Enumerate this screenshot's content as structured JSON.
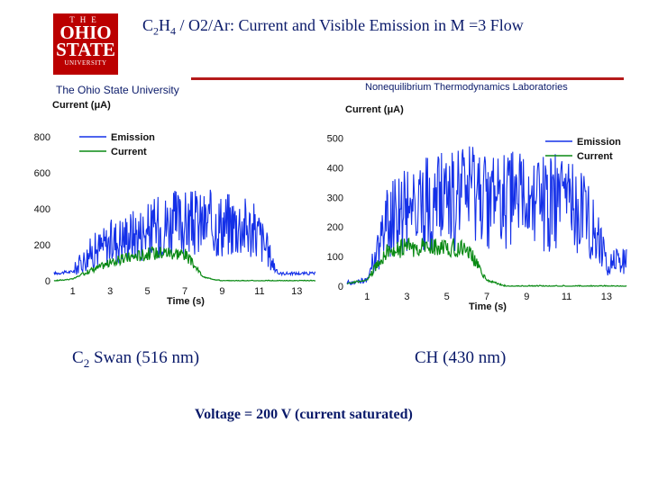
{
  "logo": {
    "the": "THE",
    "ohio": "OHIO",
    "state": "STATE",
    "university": "UNIVERSITY"
  },
  "title": {
    "prefix": "C",
    "sub1": "2",
    "mid": "H",
    "sub2": "4",
    "rest": " / O2/Ar: Current and Visible Emission in M =3 Flow"
  },
  "affiliation_left": "The Ohio State University",
  "affiliation_right": "Nonequilibrium Thermodynamics Laboratories",
  "captions": {
    "left_prefix": "C",
    "left_sub": "2",
    "left_rest": " Swan (516 nm)",
    "right": "CH (430 nm)",
    "voltage": "Voltage = 200 V (current saturated)"
  },
  "colors": {
    "emission": "#1430e8",
    "current": "#0a8a14",
    "accent": "#b51a1a",
    "text": "#0a1a6a"
  },
  "chart_data": [
    {
      "type": "line",
      "ylabel": "Current (μA)",
      "xlabel": "Time (s)",
      "xlim": [
        0,
        14
      ],
      "ylim": [
        0,
        900
      ],
      "x_ticks": [
        1,
        3,
        5,
        7,
        9,
        11,
        13
      ],
      "y_ticks": [
        0,
        200,
        400,
        600,
        800
      ],
      "legend": "top-left",
      "series": [
        {
          "name": "Emission",
          "x": [
            0,
            1,
            2,
            3,
            4,
            5,
            6,
            7,
            8,
            9,
            10,
            11,
            12,
            13
          ],
          "values": [
            40,
            50,
            150,
            200,
            240,
            260,
            300,
            300,
            300,
            300,
            300,
            240,
            40,
            40
          ]
        },
        {
          "name": "Current",
          "x": [
            0,
            1,
            2,
            3,
            4,
            5,
            6,
            7,
            8,
            9,
            10,
            11,
            12,
            13
          ],
          "values": [
            0,
            10,
            60,
            100,
            130,
            150,
            160,
            150,
            20,
            0,
            0,
            0,
            0,
            0
          ]
        }
      ]
    },
    {
      "type": "line",
      "ylabel": "Current (μA)",
      "xlabel": "Time (s)",
      "xlim": [
        0,
        14
      ],
      "ylim": [
        0,
        550
      ],
      "x_ticks": [
        1,
        3,
        5,
        7,
        9,
        11,
        13
      ],
      "y_ticks": [
        0,
        100,
        200,
        300,
        400,
        500
      ],
      "legend": "top-right",
      "series": [
        {
          "name": "Emission",
          "x": [
            0,
            1,
            2,
            3,
            4,
            5,
            6,
            7,
            8,
            9,
            10,
            11,
            12,
            13
          ],
          "values": [
            10,
            20,
            200,
            250,
            260,
            270,
            280,
            280,
            280,
            280,
            270,
            260,
            250,
            80
          ]
        },
        {
          "name": "Current",
          "x": [
            0,
            1,
            2,
            3,
            4,
            5,
            6,
            7,
            8,
            9,
            10,
            11,
            12,
            13
          ],
          "values": [
            10,
            20,
            120,
            130,
            130,
            130,
            130,
            20,
            0,
            0,
            0,
            0,
            0,
            0
          ]
        }
      ]
    }
  ]
}
